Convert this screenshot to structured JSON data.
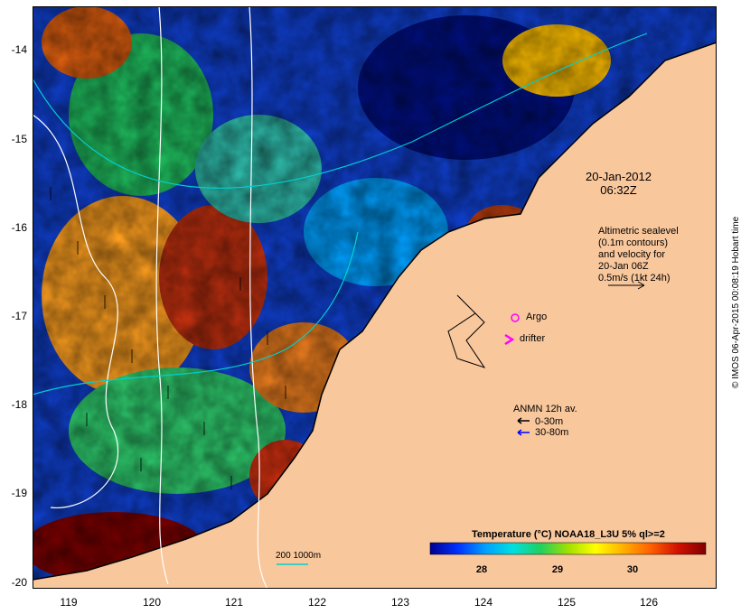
{
  "map": {
    "type": "sea-surface-temperature map",
    "lat_ticks": [
      "-14",
      "-15",
      "-16",
      "-17",
      "-18",
      "-19",
      "-20"
    ],
    "lon_ticks": [
      "119",
      "120",
      "121",
      "122",
      "123",
      "124",
      "125",
      "126"
    ],
    "lat_range": [
      -20.1,
      -13.6
    ],
    "lon_range": [
      118.6,
      126.7
    ],
    "colors": {
      "land": "#f9c79c",
      "coast": "#000000",
      "contour_white": "#ffffff",
      "contour_cyan": "#00d0d0",
      "argo": "#ff00ff",
      "drifter": "#ff00ff",
      "anmn_shallow": "#000000",
      "anmn_deep": "#0000ff"
    }
  },
  "annotations": {
    "date": "20-Jan-2012",
    "time": "06:32Z",
    "altimetry": [
      "Altimetric sealevel",
      "(0.1m contours)",
      "and velocity for",
      "20-Jan 06Z",
      "0.5m/s (1kt 24h)"
    ],
    "argo": "Argo",
    "drifter": "drifter",
    "anmn_title": "ANMN 12h av.",
    "anmn_shallow": "0-30m",
    "anmn_deep": "30-80m",
    "depth_contours": "200  1000m"
  },
  "colorbar": {
    "title": "Temperature (°C) NOAA18_L3U 5% ql>=2",
    "ticks": [
      "28",
      "29",
      "30"
    ],
    "stops": [
      "#00008f",
      "#0030ff",
      "#00a0ff",
      "#00e0e0",
      "#20d060",
      "#a0e000",
      "#ffff00",
      "#ffb000",
      "#ff6000",
      "#d01000",
      "#800000"
    ]
  },
  "credit": "© IMOS 06-Apr-2015 00:08:19 Hobart time"
}
